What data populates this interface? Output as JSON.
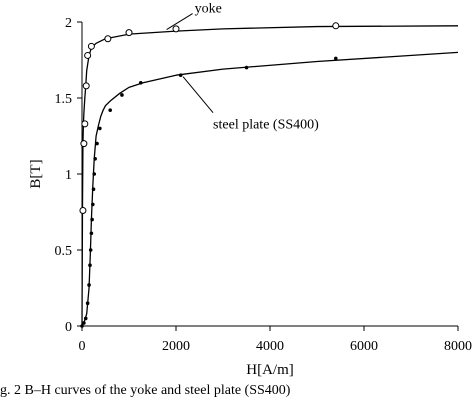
{
  "caption": "g. 2    B–H curves of the yoke and steel plate (SS400)",
  "chart_data": {
    "type": "line",
    "xlabel": "H[A/m]",
    "ylabel": "B[T]",
    "xlim": [
      0,
      8000
    ],
    "ylim": [
      0,
      2
    ],
    "xticks": [
      "0",
      "2000",
      "4000",
      "6000",
      "8000"
    ],
    "yticks": [
      "0",
      "0.5",
      "1",
      "1.5",
      "2"
    ],
    "xtick_values": [
      0,
      2000,
      4000,
      6000,
      8000
    ],
    "ytick_values": [
      0,
      0.5,
      1,
      1.5,
      2
    ],
    "grid": false,
    "annotations": [
      {
        "text": "yoke",
        "series": "yoke",
        "point": [
          1800,
          1.95
        ]
      },
      {
        "text": "steel plate (SS400)",
        "series": "steel plate (SS400)",
        "point": [
          2150,
          1.64
        ]
      }
    ],
    "series": [
      {
        "name": "yoke",
        "marker": "open-circle",
        "color": "#000000",
        "x": [
          0,
          10,
          20,
          30,
          40,
          60,
          80,
          100,
          150,
          200,
          300,
          500,
          1000,
          2000,
          3000,
          5000,
          8000
        ],
        "y": [
          0.0,
          0.76,
          1.2,
          1.33,
          1.4,
          1.5,
          1.58,
          1.68,
          1.78,
          1.83,
          1.86,
          1.89,
          1.92,
          1.94,
          1.955,
          1.97,
          1.975
        ],
        "markers_x": [
          20,
          40,
          60,
          90,
          120,
          200,
          550,
          1000,
          2000,
          5400
        ],
        "markers_y": [
          0.76,
          1.2,
          1.33,
          1.58,
          1.78,
          1.84,
          1.89,
          1.93,
          1.955,
          1.975
        ]
      },
      {
        "name": "steel plate (SS400)",
        "marker": "filled-dot",
        "color": "#000000",
        "x": [
          0,
          50,
          100,
          150,
          180,
          200,
          230,
          260,
          300,
          350,
          400,
          450,
          500,
          600,
          800,
          1000,
          1300,
          2000,
          3000,
          5000,
          8000
        ],
        "y": [
          0.0,
          0.03,
          0.08,
          0.25,
          0.5,
          0.7,
          0.92,
          1.1,
          1.25,
          1.32,
          1.38,
          1.42,
          1.45,
          1.48,
          1.53,
          1.57,
          1.6,
          1.65,
          1.69,
          1.74,
          1.8
        ],
        "markers_x": [
          0,
          40,
          80,
          120,
          150,
          170,
          185,
          200,
          215,
          230,
          245,
          260,
          280,
          320,
          380,
          600,
          850,
          1250,
          2100,
          3500,
          5400
        ],
        "markers_y": [
          0.0,
          0.02,
          0.05,
          0.15,
          0.27,
          0.4,
          0.5,
          0.61,
          0.7,
          0.8,
          0.9,
          1.0,
          1.1,
          1.2,
          1.3,
          1.42,
          1.52,
          1.6,
          1.65,
          1.7,
          1.76
        ]
      }
    ]
  }
}
